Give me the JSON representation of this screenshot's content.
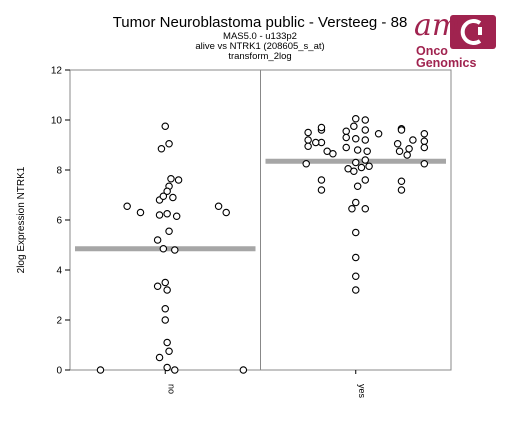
{
  "header": {
    "title": "Tumor Neuroblastoma public - Versteeg - 88",
    "line1": "MAS5.0 - u133p2",
    "line2": "alive vs NTRK1 (208605_s_at)",
    "line3": "transform_2log"
  },
  "logo": {
    "mark": "am",
    "word1": "Onco",
    "word2": "Genomics",
    "color": "#a0234f"
  },
  "chart_data": {
    "type": "scatter",
    "ylabel": "2log Expression NTRK1",
    "ylim": [
      0,
      12
    ],
    "yticks": [
      "0",
      "2",
      "4",
      "6",
      "8",
      "10",
      "12"
    ],
    "categories": [
      "no",
      "yes"
    ],
    "means": [
      4.85,
      8.35
    ],
    "groups": [
      {
        "name": "no",
        "points": [
          [
            0.5,
            9.75
          ],
          [
            0.48,
            8.85
          ],
          [
            0.52,
            9.05
          ],
          [
            0.53,
            7.65
          ],
          [
            0.57,
            7.6
          ],
          [
            0.52,
            7.35
          ],
          [
            0.51,
            7.15
          ],
          [
            0.47,
            6.8
          ],
          [
            0.54,
            6.9
          ],
          [
            0.49,
            6.95
          ],
          [
            0.3,
            6.55
          ],
          [
            0.37,
            6.3
          ],
          [
            0.78,
            6.55
          ],
          [
            0.82,
            6.3
          ],
          [
            0.47,
            6.2
          ],
          [
            0.51,
            6.25
          ],
          [
            0.56,
            6.15
          ],
          [
            0.52,
            5.55
          ],
          [
            0.46,
            5.2
          ],
          [
            0.49,
            4.85
          ],
          [
            0.55,
            4.8
          ],
          [
            0.5,
            3.5
          ],
          [
            0.46,
            3.35
          ],
          [
            0.51,
            3.2
          ],
          [
            0.5,
            2.45
          ],
          [
            0.5,
            2.0
          ],
          [
            0.51,
            1.1
          ],
          [
            0.47,
            0.5
          ],
          [
            0.52,
            0.75
          ],
          [
            0.51,
            0.1
          ],
          [
            0.16,
            0.0
          ],
          [
            0.55,
            0.0
          ],
          [
            0.91,
            0.0
          ]
        ]
      },
      {
        "name": "yes",
        "points": [
          [
            0.5,
            10.05
          ],
          [
            0.55,
            10.0
          ],
          [
            0.49,
            9.75
          ],
          [
            0.25,
            9.5
          ],
          [
            0.32,
            9.6
          ],
          [
            0.32,
            9.7
          ],
          [
            0.45,
            9.55
          ],
          [
            0.55,
            9.6
          ],
          [
            0.62,
            9.45
          ],
          [
            0.74,
            9.65
          ],
          [
            0.74,
            9.6
          ],
          [
            0.86,
            9.45
          ],
          [
            0.25,
            9.2
          ],
          [
            0.32,
            9.1
          ],
          [
            0.45,
            9.3
          ],
          [
            0.5,
            9.25
          ],
          [
            0.55,
            9.2
          ],
          [
            0.72,
            9.05
          ],
          [
            0.8,
            9.2
          ],
          [
            0.86,
            9.15
          ],
          [
            0.25,
            8.95
          ],
          [
            0.29,
            9.1
          ],
          [
            0.35,
            8.75
          ],
          [
            0.38,
            8.65
          ],
          [
            0.45,
            8.9
          ],
          [
            0.51,
            8.8
          ],
          [
            0.56,
            8.75
          ],
          [
            0.73,
            8.75
          ],
          [
            0.78,
            8.85
          ],
          [
            0.86,
            8.9
          ],
          [
            0.77,
            8.6
          ],
          [
            0.24,
            8.25
          ],
          [
            0.5,
            8.3
          ],
          [
            0.55,
            8.4
          ],
          [
            0.86,
            8.25
          ],
          [
            0.46,
            8.05
          ],
          [
            0.49,
            7.95
          ],
          [
            0.53,
            8.1
          ],
          [
            0.57,
            8.15
          ],
          [
            0.55,
            7.6
          ],
          [
            0.51,
            7.35
          ],
          [
            0.32,
            7.6
          ],
          [
            0.32,
            7.2
          ],
          [
            0.74,
            7.55
          ],
          [
            0.74,
            7.2
          ],
          [
            0.5,
            6.7
          ],
          [
            0.48,
            6.45
          ],
          [
            0.55,
            6.45
          ],
          [
            0.5,
            5.5
          ],
          [
            0.5,
            4.5
          ],
          [
            0.5,
            3.75
          ],
          [
            0.5,
            3.2
          ]
        ]
      }
    ],
    "grid": false,
    "legend": "none"
  }
}
